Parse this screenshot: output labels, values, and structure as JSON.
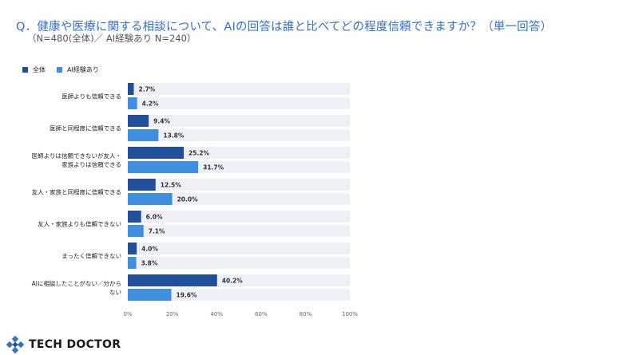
{
  "header": {
    "question": "Q．健康や医療に関する相談について、AIの回答は誰と比べてどの程度信頼できますか？（単一回答）",
    "subtitle": "（N=480(全体)／ AI経験あり N=240）"
  },
  "colors": {
    "all": "#1f4e9a",
    "ai": "#3f8fe0",
    "band": "#eef0f5"
  },
  "brand": {
    "name": "TECH DOCTOR"
  },
  "chart_data": {
    "type": "bar",
    "orientation": "horizontal",
    "categories": [
      [
        "医師よりも信頼できる"
      ],
      [
        "医師と同程度に信頼できる"
      ],
      [
        "医師よりは信頼できないが友人・",
        "家族よりは信頼できる"
      ],
      [
        "友人・家族と同程度に信頼できる"
      ],
      [
        "友人・家族よりも信頼できない"
      ],
      [
        "まったく信頼できない"
      ],
      [
        "AIに相談したことがない／分から",
        "ない"
      ]
    ],
    "series": [
      {
        "name": "全体",
        "values": [
          2.7,
          9.4,
          25.2,
          12.5,
          6.0,
          4.0,
          40.2
        ],
        "labels": [
          "2.7%",
          "9.4%",
          "25.2%",
          "12.5%",
          "6.0%",
          "4.0%",
          "40.2%"
        ]
      },
      {
        "name": "AI経験あり",
        "values": [
          4.2,
          13.8,
          31.7,
          20.0,
          7.1,
          3.8,
          19.6
        ],
        "labels": [
          "4.2%",
          "13.8%",
          "31.7%",
          "20.0%",
          "7.1%",
          "3.8%",
          "19.6%"
        ]
      }
    ],
    "xlim": [
      0,
      100
    ],
    "xticks": [
      "0%",
      "20%",
      "40%",
      "60%",
      "80%",
      "100%"
    ],
    "legend_position": "top-left",
    "grid": false
  }
}
